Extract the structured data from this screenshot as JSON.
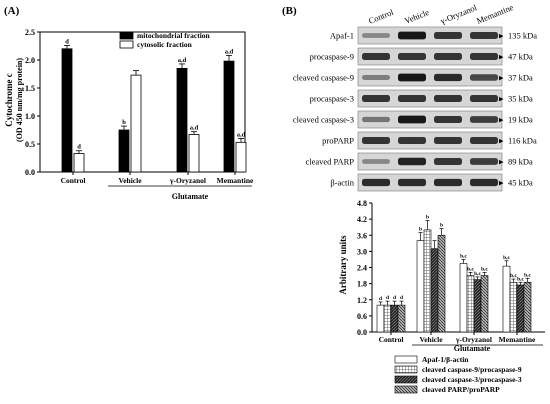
{
  "panel_a": {
    "label": "(A)",
    "chart_data": {
      "type": "bar",
      "ylabel": "Cytochrome c",
      "ylabel2": "(OD 450 nm/mg protein)",
      "ylim": [
        0,
        2.5
      ],
      "yticks": [
        "0.0",
        "0.5",
        "1.0",
        "1.5",
        "2.0",
        "2.5"
      ],
      "categories": [
        "Control",
        "Vehicle",
        "γ-Oryzanol",
        "Memantine"
      ],
      "group_label": "Glutamate",
      "legend_position": "top-right",
      "series": [
        {
          "name": "mitochondrial fraction",
          "color": "#000000",
          "values": [
            2.2,
            0.75,
            1.85,
            1.98
          ],
          "errors": [
            0.06,
            0.07,
            0.08,
            0.1
          ],
          "labels": [
            "d",
            "b",
            "a,d",
            "a,d"
          ]
        },
        {
          "name": "cytosolic fraction",
          "color": "#ffffff",
          "values": [
            0.33,
            1.73,
            0.67,
            0.53
          ],
          "errors": [
            0.05,
            0.08,
            0.05,
            0.07
          ],
          "labels": [
            "d",
            "",
            "a,d",
            "a,d"
          ]
        }
      ]
    }
  },
  "panel_b": {
    "label": "(B)",
    "blot": {
      "lanes": [
        "Control",
        "Vehicle",
        "γ-Oryzanol",
        "Memantine"
      ],
      "rows": [
        {
          "name": "Apaf-1",
          "kda": "135 kDa",
          "intensity": [
            0.35,
            0.95,
            0.8,
            0.8
          ]
        },
        {
          "name": "procaspase-9",
          "kda": "47 kDa",
          "intensity": [
            0.8,
            0.8,
            0.8,
            0.8
          ]
        },
        {
          "name": "cleaved caspase-9",
          "kda": "37 kDa",
          "intensity": [
            0.4,
            0.95,
            0.85,
            0.7
          ]
        },
        {
          "name": "procaspase-3",
          "kda": "35 kDa",
          "intensity": [
            0.8,
            0.8,
            0.8,
            0.8
          ]
        },
        {
          "name": "cleaved caspase-3",
          "kda": "19 kDa",
          "intensity": [
            0.45,
            0.95,
            0.8,
            0.75
          ]
        },
        {
          "name": "proPARP",
          "kda": "116 kDa",
          "intensity": [
            0.8,
            0.8,
            0.8,
            0.8
          ]
        },
        {
          "name": "cleaved PARP",
          "kda": "89 kDa",
          "intensity": [
            0.35,
            0.9,
            0.8,
            0.75
          ]
        },
        {
          "name": "β-actin",
          "kda": "45 kDa",
          "intensity": [
            0.85,
            0.85,
            0.85,
            0.85
          ]
        }
      ]
    },
    "chart_data": {
      "type": "bar",
      "ylabel": "Arbitrary units",
      "ylim": [
        0,
        4.8
      ],
      "yticks": [
        "0.0",
        "0.6",
        "1.2",
        "1.8",
        "2.4",
        "3.0",
        "3.6",
        "4.2",
        "4.8"
      ],
      "categories": [
        "Control",
        "Vehicle",
        "γ-Oryzanol",
        "Memantine"
      ],
      "group_label": "Glutamate",
      "legend_position": "bottom",
      "series": [
        {
          "name": "Apaf-1/β-actin",
          "values": [
            1.0,
            3.4,
            2.55,
            2.45
          ],
          "errors": [
            0.12,
            0.3,
            0.15,
            0.2
          ],
          "labels": [
            "d",
            "b",
            "b,c",
            "b,c"
          ]
        },
        {
          "name": "cleaved caspase-9/procaspase-9",
          "values": [
            1.0,
            3.8,
            2.1,
            1.85
          ],
          "errors": [
            0.15,
            0.35,
            0.12,
            0.12
          ],
          "labels": [
            "d",
            "b",
            "b,c",
            "b,c"
          ]
        },
        {
          "name": "cleaved caspase-3/procaspase-3",
          "values": [
            1.0,
            3.1,
            1.95,
            1.75
          ],
          "errors": [
            0.15,
            0.3,
            0.1,
            0.1
          ],
          "labels": [
            "d",
            "",
            "b,c",
            "b,c"
          ]
        },
        {
          "name": "cleaved PARP/proPARP",
          "values": [
            1.0,
            3.6,
            2.1,
            1.85
          ],
          "errors": [
            0.15,
            0.25,
            0.12,
            0.15
          ],
          "labels": [
            "d",
            "b",
            "b,c",
            "b,c"
          ]
        }
      ]
    }
  }
}
